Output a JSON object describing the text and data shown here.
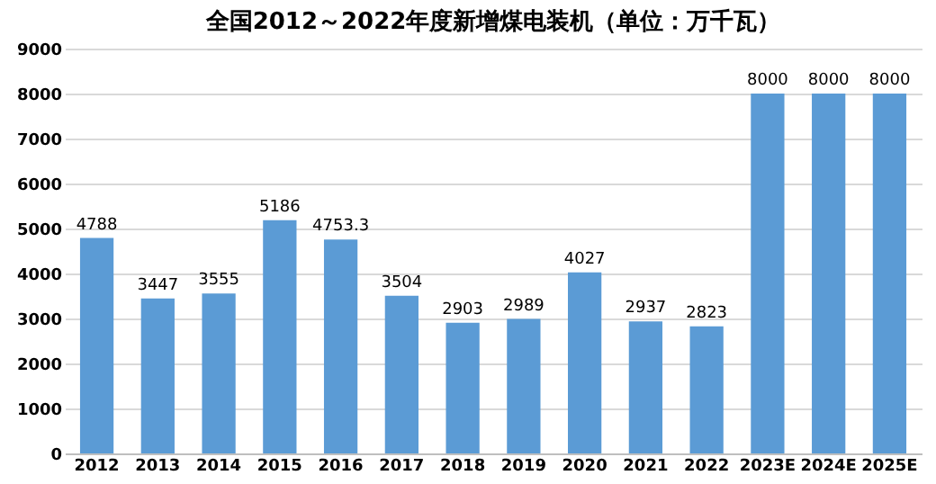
{
  "chart_data": {
    "type": "bar",
    "title": "全国2012～2022年度新增煤电装机（单位：万千瓦）",
    "categories": [
      "2012",
      "2013",
      "2014",
      "2015",
      "2016",
      "2017",
      "2018",
      "2019",
      "2020",
      "2021",
      "2022",
      "2023E",
      "2024E",
      "2025E"
    ],
    "values": [
      4788,
      3447,
      3555,
      5186,
      4753.3,
      3504,
      2903,
      2989,
      4027,
      2937,
      2823,
      8000,
      8000,
      8000
    ],
    "color": "#5b9bd5",
    "ylim": [
      0,
      9000
    ],
    "yticks": [
      0,
      1000,
      2000,
      3000,
      4000,
      5000,
      6000,
      7000,
      8000,
      9000
    ],
    "grid": "y",
    "data_labels": true
  }
}
